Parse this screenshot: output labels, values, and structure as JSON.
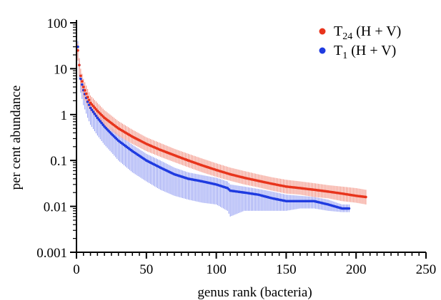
{
  "chart_data": {
    "type": "scatter",
    "title": "",
    "xlabel": "genus rank (bacteria)",
    "ylabel": "per cent abundance",
    "xlim": [
      0,
      250
    ],
    "ylim": [
      0.001,
      100
    ],
    "yscale": "log",
    "xticks": [
      "0",
      "50",
      "100",
      "150",
      "200",
      "250"
    ],
    "yticks": [
      "0.001",
      "0.01",
      "0.1",
      "1",
      "10",
      "100"
    ],
    "grid": false,
    "legend_position": "top-right",
    "series": [
      {
        "name_main": "T",
        "name_sub": "24",
        "name_suffix": " (H + V)",
        "color": "#e8341c",
        "error_color": "#f28a7a",
        "x": [
          1,
          2,
          3,
          5,
          8,
          10,
          15,
          20,
          25,
          30,
          40,
          50,
          60,
          70,
          80,
          90,
          100,
          110,
          120,
          130,
          140,
          150,
          160,
          170,
          180,
          190,
          200,
          207
        ],
        "y": [
          25,
          12,
          7,
          4,
          2.4,
          1.8,
          1.2,
          0.85,
          0.65,
          0.5,
          0.33,
          0.23,
          0.17,
          0.13,
          0.1,
          0.078,
          0.062,
          0.05,
          0.042,
          0.036,
          0.031,
          0.027,
          0.025,
          0.023,
          0.021,
          0.019,
          0.017,
          0.016
        ],
        "err_low": [
          15,
          7,
          4,
          2.4,
          1.5,
          1.2,
          0.8,
          0.57,
          0.44,
          0.34,
          0.23,
          0.16,
          0.12,
          0.092,
          0.071,
          0.055,
          0.044,
          0.036,
          0.03,
          0.026,
          0.022,
          0.019,
          0.018,
          0.016,
          0.015,
          0.013,
          0.012,
          0.011
        ],
        "err_high": [
          35,
          17,
          10,
          6,
          3.6,
          2.6,
          1.8,
          1.25,
          0.95,
          0.72,
          0.47,
          0.32,
          0.24,
          0.18,
          0.14,
          0.11,
          0.087,
          0.07,
          0.059,
          0.05,
          0.043,
          0.038,
          0.035,
          0.032,
          0.029,
          0.027,
          0.025,
          0.023
        ]
      },
      {
        "name_main": "T",
        "name_sub": "1",
        "name_suffix": " (H + V)",
        "color": "#1f3be0",
        "error_color": "#8a96f2",
        "x": [
          1,
          2,
          3,
          5,
          8,
          10,
          15,
          20,
          25,
          30,
          40,
          50,
          60,
          70,
          80,
          90,
          100,
          108,
          110,
          120,
          130,
          140,
          150,
          160,
          170,
          180,
          190,
          195
        ],
        "y": [
          30,
          12,
          6,
          3.4,
          1.9,
          1.4,
          0.85,
          0.55,
          0.38,
          0.27,
          0.16,
          0.1,
          0.07,
          0.05,
          0.04,
          0.035,
          0.03,
          0.025,
          0.022,
          0.02,
          0.018,
          0.015,
          0.013,
          0.013,
          0.013,
          0.011,
          0.009,
          0.009
        ],
        "err_low": [
          15,
          6,
          3,
          1.6,
          0.85,
          0.6,
          0.35,
          0.22,
          0.15,
          0.1,
          0.055,
          0.035,
          0.023,
          0.017,
          0.014,
          0.012,
          0.011,
          0.008,
          0.006,
          0.008,
          0.008,
          0.008,
          0.008,
          0.009,
          0.009,
          0.008,
          0.0075,
          0.0075
        ],
        "err_high": [
          40,
          16,
          8,
          4.6,
          2.6,
          1.9,
          1.15,
          0.75,
          0.52,
          0.37,
          0.22,
          0.14,
          0.1,
          0.07,
          0.055,
          0.048,
          0.042,
          0.035,
          0.03,
          0.027,
          0.024,
          0.021,
          0.018,
          0.017,
          0.016,
          0.014,
          0.011,
          0.011
        ]
      }
    ]
  }
}
